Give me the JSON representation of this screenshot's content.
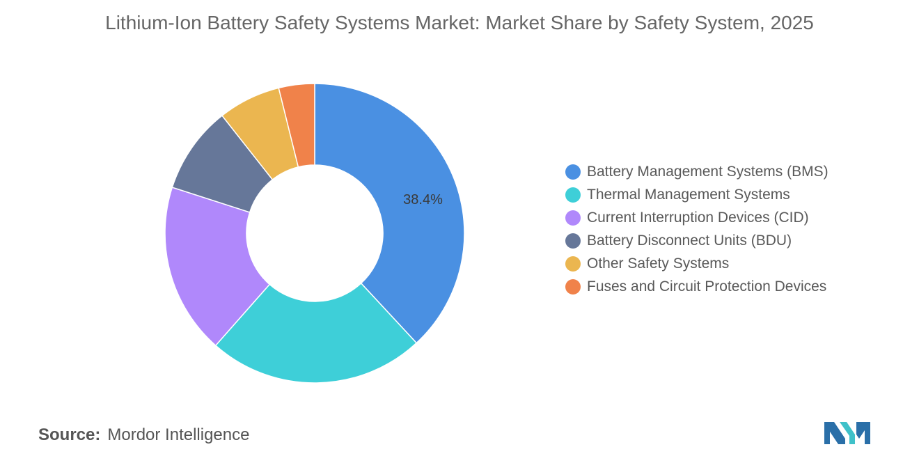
{
  "chart_data": {
    "type": "pie",
    "title": "Lithium-Ion Battery Safety Systems Market: Market Share by Safety System, 2025",
    "categories": [
      "Battery Management Systems (BMS)",
      "Thermal Management Systems",
      "Current Interruption Devices (CID)",
      "Battery Disconnect Units (BDU)",
      "Other Safety Systems",
      "Fuses and Circuit Protection Devices"
    ],
    "values": [
      38.4,
      23.6,
      18.6,
      9.5,
      6.8,
      3.9
    ],
    "colors": [
      "#4a90e2",
      "#3ecfd8",
      "#b088fb",
      "#667799",
      "#ebb650",
      "#f0824a"
    ],
    "data_labels": [
      "38.4%",
      "",
      "",
      "",
      "",
      ""
    ],
    "legend_position": "right"
  },
  "source": {
    "label": "Source:",
    "text": "Mordor Intelligence"
  }
}
